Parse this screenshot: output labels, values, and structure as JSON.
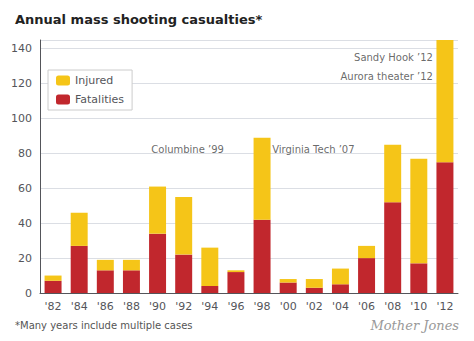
{
  "chart_data": {
    "type": "bar",
    "title": "Annual mass shooting casualties*",
    "footnote": "*Many years include multiple cases",
    "source": "Mother Jones",
    "categories": [
      "'82",
      "'84",
      "'86",
      "'88",
      "'90",
      "'92",
      "'94",
      "'96",
      "'98",
      "'00",
      "'02",
      "'04",
      "'06",
      "'08",
      "'10",
      "'12"
    ],
    "series": [
      {
        "name": "Fatalities",
        "color": "#C1272D",
        "values": [
          7,
          27,
          13,
          13,
          34,
          22,
          4,
          12,
          42,
          6,
          3,
          5,
          20,
          52,
          17,
          75
        ]
      },
      {
        "name": "Injured",
        "color": "#F5C518",
        "values": [
          3,
          19,
          6,
          6,
          27,
          33,
          22,
          1,
          47,
          2,
          5,
          9,
          7,
          33,
          60,
          70
        ]
      }
    ],
    "stacked": true,
    "ylim": [
      0,
      145
    ],
    "yticks": [
      0,
      20,
      40,
      60,
      80,
      100,
      120,
      140
    ],
    "grid": true,
    "legend": "upper left",
    "annotations": [
      {
        "text": "Columbine ’99",
        "x": "'96",
        "y": 82
      },
      {
        "text": "Virginia Tech ’07",
        "x": "'06",
        "y": 82
      },
      {
        "text": "Sandy Hook ’12",
        "x": "'12",
        "y": 135
      },
      {
        "text": "Aurora theater ’12",
        "x": "'12",
        "y": 124
      }
    ]
  }
}
